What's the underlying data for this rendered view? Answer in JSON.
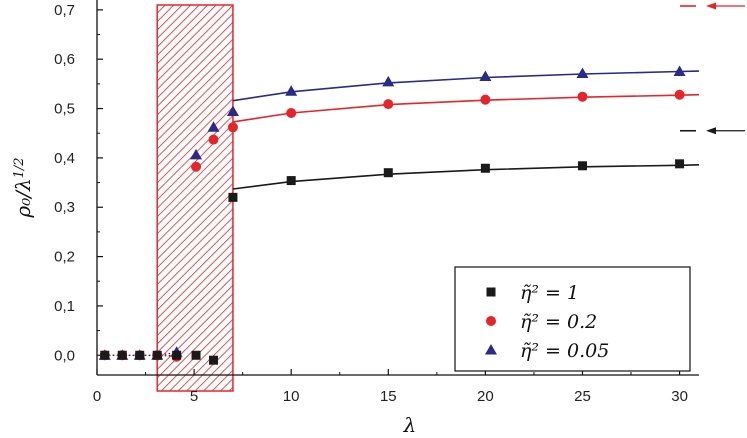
{
  "chart_data": {
    "type": "scatter",
    "xlabel": "λ",
    "ylabel": "ρ₀/λ^{1/2}",
    "xlim": [
      0,
      31
    ],
    "ylim": [
      -0.04,
      0.72
    ],
    "x_ticks": [
      0,
      5,
      10,
      15,
      20,
      25,
      30
    ],
    "x_tick_labels": [
      "0",
      "5",
      "10",
      "15",
      "20",
      "25",
      "30"
    ],
    "y_ticks": [
      0.0,
      0.1,
      0.2,
      0.3,
      0.4,
      0.5,
      0.6,
      0.7
    ],
    "y_tick_labels": [
      "0,0",
      "0,1",
      "0,2",
      "0,3",
      "0,4",
      "0,5",
      "0,6",
      "0,7"
    ],
    "grid": false,
    "legend_position": "bottom-right",
    "shaded_region": {
      "x": [
        3.1,
        7.0
      ],
      "pattern": "diagonal-hatch",
      "color": "#e8232a"
    },
    "series": [
      {
        "name": "η̃² = 1",
        "marker": "square",
        "color": "#1a1a1a",
        "points": [
          [
            0.4,
            0.0
          ],
          [
            1.3,
            0.0
          ],
          [
            2.2,
            0.0
          ],
          [
            3.1,
            0.0
          ],
          [
            4.1,
            0.0
          ],
          [
            5.1,
            0.0
          ],
          [
            6.0,
            -0.01
          ],
          [
            7.0,
            0.32
          ],
          [
            10,
            0.354
          ],
          [
            15,
            0.37
          ],
          [
            20,
            0.379
          ],
          [
            25,
            0.384
          ],
          [
            30,
            0.388
          ]
        ],
        "fit": [
          [
            7.0,
            0.337
          ],
          [
            10,
            0.352
          ],
          [
            15,
            0.367
          ],
          [
            20,
            0.376
          ],
          [
            25,
            0.382
          ],
          [
            30,
            0.385
          ],
          [
            31,
            0.386
          ]
        ],
        "asymptote": 0.455
      },
      {
        "name": "η̃² = 0.2",
        "marker": "circle",
        "color": "#e8232a",
        "points": [
          [
            0.4,
            0.0
          ],
          [
            1.3,
            0.0
          ],
          [
            2.2,
            0.0
          ],
          [
            3.1,
            0.0
          ],
          [
            4.1,
            -0.003
          ],
          [
            5.1,
            0.382
          ],
          [
            6.0,
            0.437
          ],
          [
            7.0,
            0.462
          ],
          [
            10,
            0.491
          ],
          [
            15,
            0.509
          ],
          [
            20,
            0.518
          ],
          [
            25,
            0.524
          ],
          [
            30,
            0.528
          ]
        ],
        "fit": [
          [
            7.0,
            0.473
          ],
          [
            10,
            0.491
          ],
          [
            15,
            0.508
          ],
          [
            20,
            0.517
          ],
          [
            25,
            0.523
          ],
          [
            30,
            0.527
          ],
          [
            31,
            0.528
          ]
        ],
        "asymptote": 0.72
      },
      {
        "name": "η̃² = 0.05",
        "marker": "triangle",
        "color": "#2a2a8c",
        "points": [
          [
            0.4,
            0.0
          ],
          [
            1.3,
            0.0
          ],
          [
            2.2,
            0.0
          ],
          [
            3.1,
            0.0
          ],
          [
            4.1,
            0.006
          ],
          [
            5.1,
            0.406
          ],
          [
            6.0,
            0.462
          ],
          [
            7.0,
            0.494
          ],
          [
            10,
            0.535
          ],
          [
            15,
            0.554
          ],
          [
            20,
            0.565
          ],
          [
            25,
            0.571
          ],
          [
            30,
            0.575
          ]
        ],
        "fit": [
          [
            7.0,
            0.516
          ],
          [
            10,
            0.534
          ],
          [
            15,
            0.552
          ],
          [
            20,
            0.563
          ],
          [
            25,
            0.57
          ],
          [
            30,
            0.575
          ],
          [
            31,
            0.576
          ]
        ]
      }
    ]
  }
}
